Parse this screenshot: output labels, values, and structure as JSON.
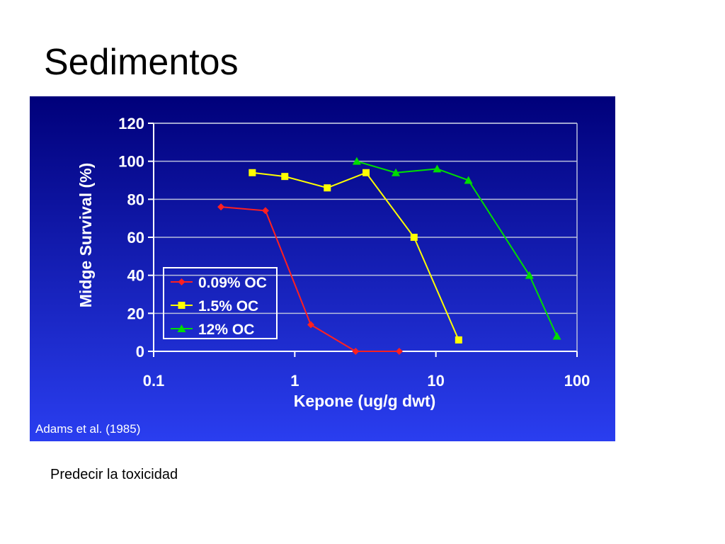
{
  "slide": {
    "title": "Sedimentos",
    "caption": "Predecir la toxicidad"
  },
  "colors": {
    "panel_top": "#00007a",
    "panel_bottom": "#2a3ef0",
    "axis_text": "#ffffff",
    "series_red": "#ff2020",
    "series_yellow": "#ffff00",
    "series_green": "#00dd00"
  },
  "chart_data": {
    "type": "line",
    "title": "",
    "xlabel": "Kepone (ug/g dwt)",
    "ylabel": "Midge Survival (%)",
    "x_scale": "log",
    "xlim": [
      0.1,
      100
    ],
    "ylim": [
      0,
      120
    ],
    "x_ticks": [
      "0.1",
      "1",
      "10",
      "100"
    ],
    "x_tick_values": [
      0.1,
      1,
      10,
      100
    ],
    "y_ticks": [
      "0",
      "20",
      "40",
      "60",
      "80",
      "100",
      "120"
    ],
    "y_tick_values": [
      0,
      20,
      40,
      60,
      80,
      100,
      120
    ],
    "grid": true,
    "legend_position": "bottom-left",
    "source_note": "Adams et al. (1985)",
    "series": [
      {
        "name": "0.09% OC",
        "color": "#ff2020",
        "marker": "diamond",
        "x": [
          0.3,
          0.62,
          1.3,
          2.7,
          5.5
        ],
        "y": [
          76,
          74,
          14,
          0,
          0
        ]
      },
      {
        "name": "1.5% OC",
        "color": "#ffff00",
        "marker": "square",
        "x": [
          0.5,
          0.85,
          1.7,
          3.2,
          7,
          14.5
        ],
        "y": [
          94,
          92,
          86,
          94,
          60,
          6
        ]
      },
      {
        "name": "12% OC",
        "color": "#00dd00",
        "marker": "triangle",
        "x": [
          2.75,
          5.2,
          10.2,
          17,
          46,
          72
        ],
        "y": [
          100,
          94,
          96,
          90,
          40,
          8
        ]
      }
    ]
  }
}
